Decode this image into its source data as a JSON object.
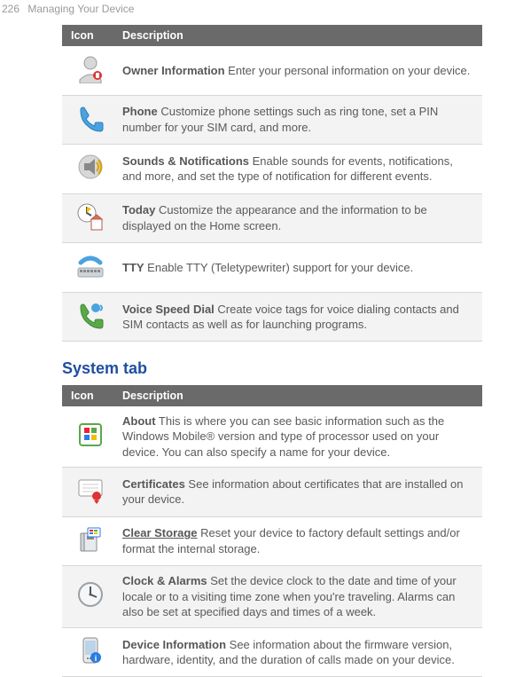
{
  "page_header": {
    "number": "226",
    "title": "Managing Your Device"
  },
  "table1": {
    "headers": {
      "icon": "Icon",
      "desc": "Description"
    },
    "rows": [
      {
        "icon": "owner-info-icon",
        "label": "Owner Information",
        "text": "  Enter your personal information on your device."
      },
      {
        "icon": "phone-icon",
        "label": "Phone",
        "text": "  Customize phone settings such as ring tone, set a PIN number for your SIM card, and more."
      },
      {
        "icon": "sounds-icon",
        "label": "Sounds & Notifications",
        "text": "  Enable sounds for events, notifications, and more, and set the type of notification for different events."
      },
      {
        "icon": "today-icon",
        "label": "Today",
        "text": "  Customize the appearance and the information to be displayed on the Home screen."
      },
      {
        "icon": "tty-icon",
        "label": "TTY",
        "text": " Enable TTY (Teletypewriter) support for your device."
      },
      {
        "icon": "voice-speed-dial-icon",
        "label": "Voice Speed Dial",
        "text": "  Create voice tags for voice dialing contacts and SIM contacts as well as for launching programs."
      }
    ]
  },
  "section_heading": "System tab",
  "table2": {
    "headers": {
      "icon": "Icon",
      "desc": "Description"
    },
    "rows": [
      {
        "icon": "about-icon",
        "label": "About",
        "text": "  This is where you can see basic information such as the Windows Mobile® version and type of processor used on your device. You can also specify a name for your device."
      },
      {
        "icon": "certificates-icon",
        "label": "Certificates",
        "text": "  See information about certificates that are installed on your device."
      },
      {
        "icon": "clear-storage-icon",
        "label": "Clear Storage",
        "link": true,
        "text": "  Reset your device to factory default settings and/or format the internal storage."
      },
      {
        "icon": "clock-alarms-icon",
        "label": "Clock & Alarms",
        "text": "  Set the device clock to the date and time of your locale or to a visiting time zone when you're traveling. Alarms can also be set at specified days and times of a week."
      },
      {
        "icon": "device-info-icon",
        "label": "Device Information",
        "text": "  See information about the firmware version, hardware, identity, and the duration of calls made on your device."
      }
    ]
  },
  "colors": {
    "th_bg": "#6a6a6a",
    "zebra_bg": "#f3f3f3",
    "border": "#d7d7d7",
    "heading": "#1f4fa0"
  }
}
